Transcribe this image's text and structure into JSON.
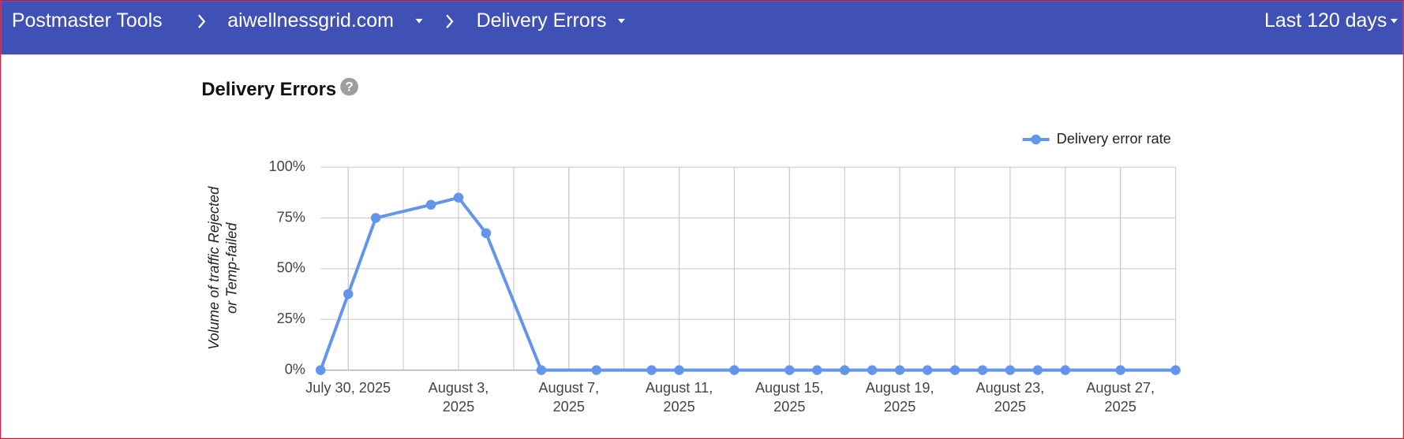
{
  "header": {
    "app": "Postmaster Tools",
    "domain": "aiwellnessgrid.com",
    "page": "Delivery Errors",
    "range": "Last 120 days"
  },
  "chart_data": {
    "type": "line",
    "title": "Delivery Errors",
    "help_icon": "?",
    "y_label": "Volume of traffic Rejected or Temp-failed",
    "x": [
      "2025-07-29",
      "2025-07-30",
      "2025-07-31",
      "2025-08-02",
      "2025-08-03",
      "2025-08-04",
      "2025-08-06",
      "2025-08-08",
      "2025-08-10",
      "2025-08-11",
      "2025-08-13",
      "2025-08-15",
      "2025-08-16",
      "2025-08-17",
      "2025-08-18",
      "2025-08-19",
      "2025-08-20",
      "2025-08-21",
      "2025-08-22",
      "2025-08-23",
      "2025-08-24",
      "2025-08-25",
      "2025-08-27",
      "2025-08-29"
    ],
    "series": [
      {
        "name": "Delivery error rate",
        "color": "#6495ed",
        "values": [
          0,
          37.5,
          75,
          81.5,
          85,
          67.5,
          0,
          0,
          0,
          0,
          0,
          0,
          0,
          0,
          0,
          0,
          0,
          0,
          0,
          0,
          0,
          0,
          0,
          0
        ]
      }
    ],
    "xlim": [
      "2025-07-29",
      "2025-08-29"
    ],
    "xticks": [
      {
        "value": "2025-07-30",
        "label": "July 30, 2025"
      },
      {
        "value": "2025-08-03",
        "label": "August 3, 2025"
      },
      {
        "value": "2025-08-07",
        "label": "August 7, 2025"
      },
      {
        "value": "2025-08-11",
        "label": "August 11, 2025"
      },
      {
        "value": "2025-08-15",
        "label": "August 15, 2025"
      },
      {
        "value": "2025-08-19",
        "label": "August 19, 2025"
      },
      {
        "value": "2025-08-23",
        "label": "August 23, 2025"
      },
      {
        "value": "2025-08-27",
        "label": "August 27, 2025"
      }
    ],
    "ylim": [
      0,
      100
    ],
    "yticks": [
      {
        "value": 0,
        "label": "0%"
      },
      {
        "value": 25,
        "label": "25%"
      },
      {
        "value": 50,
        "label": "50%"
      },
      {
        "value": 75,
        "label": "75%"
      },
      {
        "value": 100,
        "label": "100%"
      }
    ],
    "grid": true,
    "legend": "top-right"
  }
}
